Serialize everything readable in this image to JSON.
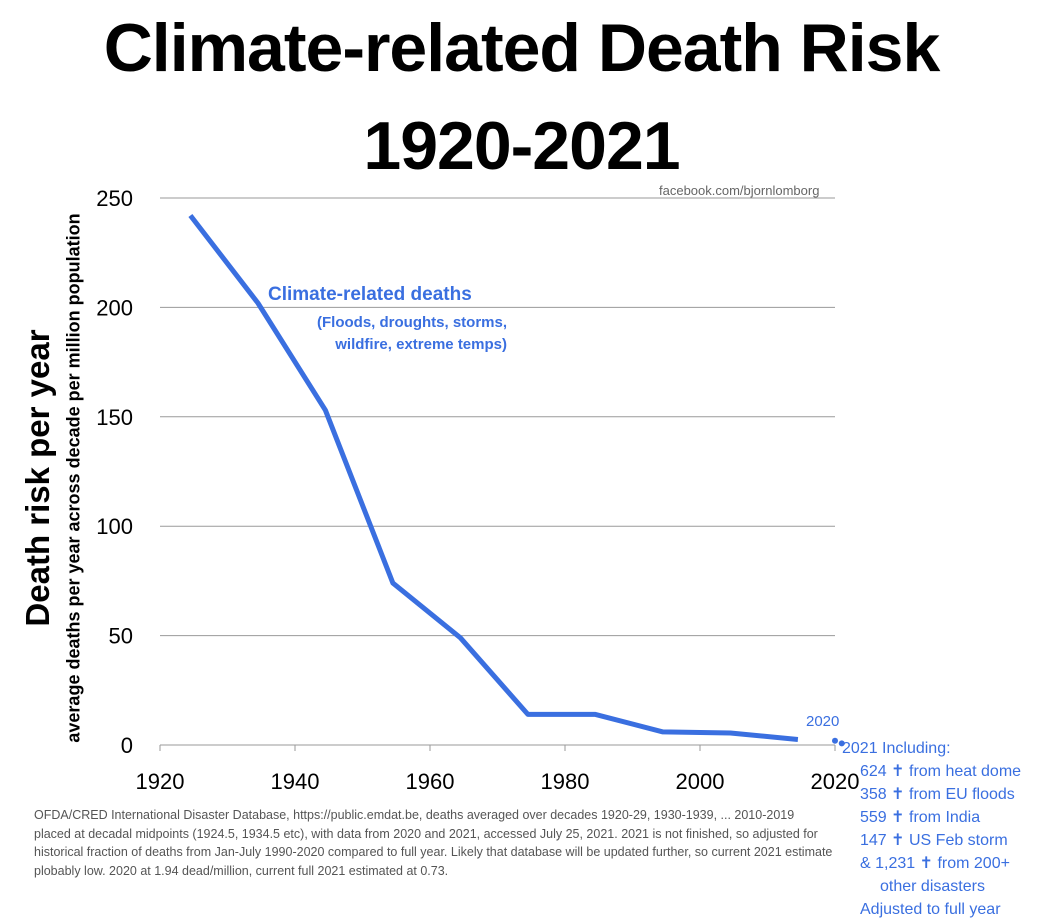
{
  "chart_data": {
    "type": "line",
    "title": "Climate-related Death Risk",
    "subtitle": "1920-2021",
    "source": "facebook.com/bjornlomborg",
    "ylabel": "Death risk per year",
    "ylabel_sub": "average deaths per year across decade per million population",
    "xlim": [
      1920,
      2020
    ],
    "ylim": [
      0,
      250
    ],
    "x_ticks": [
      "1920",
      "1940",
      "1960",
      "1980",
      "2000",
      "2020"
    ],
    "y_ticks": [
      "0",
      "50",
      "100",
      "150",
      "200",
      "250"
    ],
    "grid": "horizontal",
    "series": [
      {
        "name": "Climate-related deaths",
        "description": "(Floods, droughts, storms, wildfire, extreme temps)",
        "color": "#3a6fe0",
        "x": [
          1924.5,
          1934.5,
          1944.5,
          1954.5,
          1964.5,
          1974.5,
          1984.5,
          1994.5,
          2004.5,
          2014.5
        ],
        "y": [
          242,
          202,
          153,
          74,
          49,
          14,
          14,
          6,
          5.5,
          2.5
        ]
      }
    ],
    "points": [
      {
        "label": "2020",
        "x": 2020,
        "y": 1.94
      },
      {
        "label": "2021",
        "x": 2021,
        "y": 0.73
      }
    ],
    "annotations": {
      "point_2020": "2020",
      "note_2021": [
        "2021 Including:",
        "624 ✝ from heat dome",
        "358 ✝ from EU floods",
        "559 ✝ from India",
        "147 ✝ US Feb storm",
        "& 1,231 ✝ from 200+",
        "other disasters",
        "Adjusted to full year"
      ],
      "series_line1": "(Floods, droughts, storms,",
      "series_line2": "wildfire, extreme temps)"
    },
    "footnote": "OFDA/CRED International Disaster Database, https://public.emdat.be, deaths averaged over decades 1920-29, 1930-1939, ... 2010-2019 placed at decadal midpoints (1924.5, 1934.5 etc), with data from 2020 and 2021, accessed July 25, 2021. 2021 is not finished, so adjusted for historical fraction of deaths from Jan-July 1990-2020 compared to full year. Likely that database will be updated further, so current 2021 estimate plobably low. 2020 at 1.94 dead/million, current full 2021 estimated at 0.73."
  }
}
